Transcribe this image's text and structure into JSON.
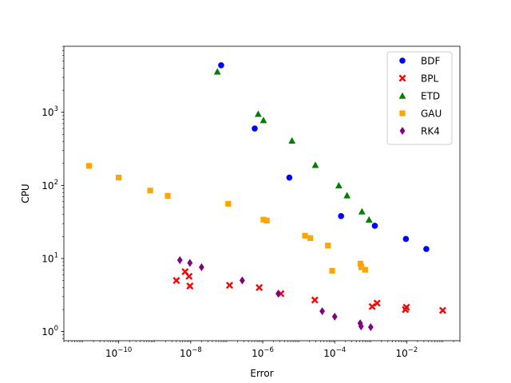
{
  "chart_data": {
    "type": "scatter",
    "title": "",
    "xlabel": "Error",
    "ylabel": "CPU",
    "xscale": "log",
    "yscale": "log",
    "xlim": [
      3e-12,
      0.3
    ],
    "ylim": [
      0.75,
      8000
    ],
    "x_ticks": [
      {
        "value": 1e-10,
        "base": "10",
        "exp": "−10"
      },
      {
        "value": 1e-08,
        "base": "10",
        "exp": "−8"
      },
      {
        "value": 1e-06,
        "base": "10",
        "exp": "−6"
      },
      {
        "value": 0.0001,
        "base": "10",
        "exp": "−4"
      },
      {
        "value": 0.01,
        "base": "10",
        "exp": "−2"
      }
    ],
    "y_ticks": [
      {
        "value": 1,
        "base": "10",
        "exp": "0"
      },
      {
        "value": 10,
        "base": "10",
        "exp": "1"
      },
      {
        "value": 100,
        "base": "10",
        "exp": "2"
      },
      {
        "value": 1000,
        "base": "10",
        "exp": "3"
      }
    ],
    "grid": false,
    "legend_position": "top-right",
    "series": [
      {
        "name": "BDF",
        "color": "#0000ff",
        "marker": "circle",
        "points": [
          [
            7e-08,
            4400
          ],
          [
            6e-07,
            600
          ],
          [
            5.5e-06,
            128
          ],
          [
            0.00015,
            38
          ],
          [
            0.0013,
            28
          ],
          [
            0.0095,
            18.5
          ],
          [
            0.035,
            13.5
          ]
        ]
      },
      {
        "name": "BPL",
        "color": "#ff0000",
        "marker": "x",
        "points": [
          [
            4e-09,
            5
          ],
          [
            7e-09,
            6.6
          ],
          [
            9e-09,
            5.7
          ],
          [
            9.5e-09,
            4.2
          ],
          [
            1.2e-07,
            4.3
          ],
          [
            8e-07,
            4
          ],
          [
            3.2e-06,
            3.3
          ],
          [
            2.8e-05,
            2.7
          ],
          [
            0.0011,
            2.2
          ],
          [
            0.0015,
            2.45
          ],
          [
            0.0092,
            2.0
          ],
          [
            0.0098,
            2.15
          ],
          [
            0.1,
            1.95
          ]
        ]
      },
      {
        "name": "ETD",
        "color": "#008000",
        "marker": "triangle",
        "points": [
          [
            5.5e-08,
            3600
          ],
          [
            7.5e-07,
            950
          ],
          [
            1.05e-06,
            780
          ],
          [
            6.5e-06,
            410
          ],
          [
            2.9e-05,
            190
          ],
          [
            0.00013,
            100
          ],
          [
            0.00022,
            73
          ],
          [
            0.00057,
            44
          ],
          [
            0.0009,
            34
          ]
        ]
      },
      {
        "name": "GAU",
        "color": "#ffa500",
        "marker": "square",
        "points": [
          [
            1.5e-11,
            185
          ],
          [
            1e-10,
            128
          ],
          [
            7.5e-10,
            85
          ],
          [
            2.3e-09,
            72
          ],
          [
            1.1e-07,
            56
          ],
          [
            1.05e-06,
            34
          ],
          [
            1.3e-06,
            33
          ],
          [
            1.5e-05,
            20.5
          ],
          [
            2.1e-05,
            19
          ],
          [
            6.5e-05,
            15
          ],
          [
            8.5e-05,
            6.8
          ],
          [
            0.00052,
            8.5
          ],
          [
            0.00055,
            7.6
          ],
          [
            0.0007,
            7
          ]
        ]
      },
      {
        "name": "RK4",
        "color": "#800080",
        "marker": "diamond",
        "points": [
          [
            5e-09,
            9.5
          ],
          [
            9.5e-09,
            8.7
          ],
          [
            2e-08,
            7.6
          ],
          [
            2.7e-07,
            5
          ],
          [
            2.7e-06,
            3.3
          ],
          [
            4.5e-05,
            1.9
          ],
          [
            0.0001,
            1.6
          ],
          [
            0.00051,
            1.3
          ],
          [
            0.00054,
            1.18
          ],
          [
            0.001,
            1.15
          ]
        ]
      }
    ]
  }
}
